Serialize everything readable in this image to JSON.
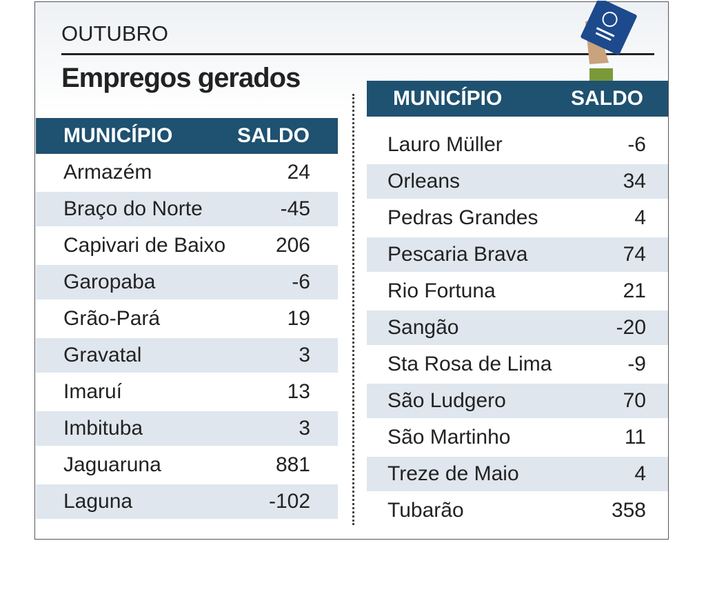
{
  "header": {
    "section": "OUTUBRO",
    "title": "Empregos gerados"
  },
  "tables": [
    {
      "columns": [
        "MUNICÍPIO",
        "SALDO"
      ],
      "rows": [
        [
          "Armazém",
          24
        ],
        [
          "Braço do Norte",
          -45
        ],
        [
          "Capivari de Baixo",
          206
        ],
        [
          "Garopaba",
          -6
        ],
        [
          "Grão-Pará",
          19
        ],
        [
          "Gravatal",
          3
        ],
        [
          "Imaruí",
          13
        ],
        [
          "Imbituba",
          3
        ],
        [
          "Jaguaruna",
          881
        ],
        [
          "Laguna",
          -102
        ]
      ]
    },
    {
      "columns": [
        "MUNICÍPIO",
        "SALDO"
      ],
      "rows": [
        [
          "Lauro Müller",
          -6
        ],
        [
          "Orleans",
          34
        ],
        [
          "Pedras Grandes",
          4
        ],
        [
          "Pescaria Brava",
          74
        ],
        [
          "Rio Fortuna",
          21
        ],
        [
          "Sangão",
          -20
        ],
        [
          "Sta Rosa de Lima",
          -9
        ],
        [
          "São Ludgero",
          70
        ],
        [
          "São Martinho",
          11
        ],
        [
          "Treze de Maio",
          4
        ],
        [
          "Tubarão",
          358
        ]
      ]
    }
  ]
}
